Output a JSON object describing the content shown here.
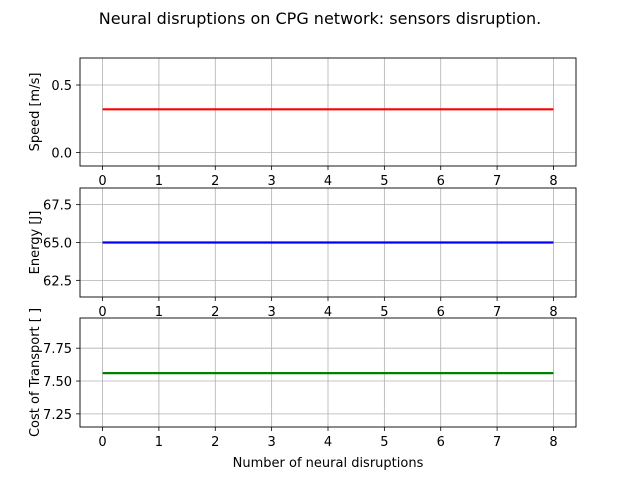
{
  "title": "Neural disruptions on CPG network: sensors disruption.",
  "xlabel": "Number of neural disruptions",
  "chart_data": [
    {
      "type": "line",
      "ylabel": "Speed [m/s]",
      "x": [
        0,
        1,
        2,
        3,
        4,
        5,
        6,
        7,
        8
      ],
      "series": [
        {
          "values": [
            0.32,
            0.32,
            0.32,
            0.32,
            0.32,
            0.32,
            0.32,
            0.32,
            0.32
          ],
          "color": "#ff0000"
        }
      ],
      "xlim": [
        -0.4,
        8.4
      ],
      "ylim": [
        -0.1,
        0.7
      ],
      "xticks": [
        0,
        1,
        2,
        3,
        4,
        5,
        6,
        7,
        8
      ],
      "yticks": [
        0.0,
        0.5
      ],
      "ytick_labels": [
        "0.0",
        "0.5"
      ],
      "grid": true
    },
    {
      "type": "line",
      "ylabel": "Energy [J]",
      "x": [
        0,
        1,
        2,
        3,
        4,
        5,
        6,
        7,
        8
      ],
      "series": [
        {
          "values": [
            65.0,
            65.0,
            65.0,
            65.0,
            65.0,
            65.0,
            65.0,
            65.0,
            65.0
          ],
          "color": "#0000ff"
        }
      ],
      "xlim": [
        -0.4,
        8.4
      ],
      "ylim": [
        61.4,
        68.6
      ],
      "xticks": [
        0,
        1,
        2,
        3,
        4,
        5,
        6,
        7,
        8
      ],
      "yticks": [
        62.5,
        65.0,
        67.5
      ],
      "ytick_labels": [
        "62.5",
        "65.0",
        "67.5"
      ],
      "grid": true
    },
    {
      "type": "line",
      "ylabel": "Cost of Transport [ ]",
      "x": [
        0,
        1,
        2,
        3,
        4,
        5,
        6,
        7,
        8
      ],
      "series": [
        {
          "values": [
            7.56,
            7.56,
            7.56,
            7.56,
            7.56,
            7.56,
            7.56,
            7.56,
            7.56
          ],
          "color": "#008000"
        }
      ],
      "xlim": [
        -0.4,
        8.4
      ],
      "ylim": [
        7.15,
        7.98
      ],
      "xticks": [
        0,
        1,
        2,
        3,
        4,
        5,
        6,
        7,
        8
      ],
      "yticks": [
        7.25,
        7.5,
        7.75
      ],
      "ytick_labels": [
        "7.25",
        "7.50",
        "7.75"
      ],
      "grid": true
    }
  ]
}
